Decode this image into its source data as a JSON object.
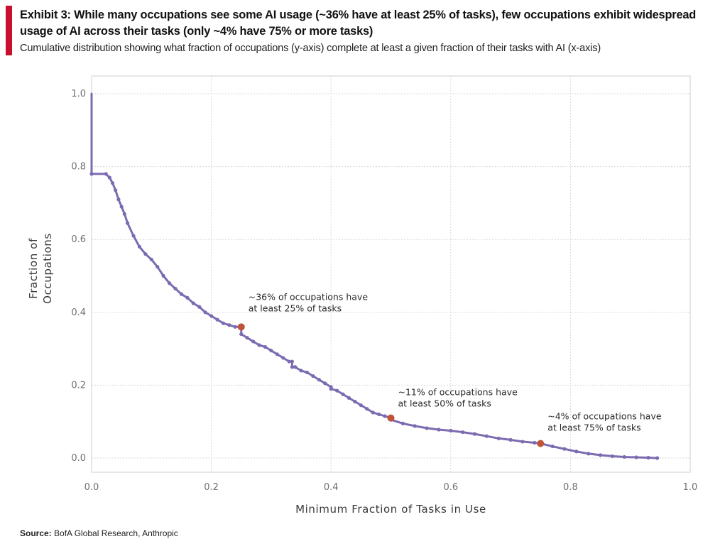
{
  "header": {
    "accent_color": "#c8102e",
    "title": "Exhibit 3: While many occupations see some AI usage (~36% have at least 25% of tasks), few occupations exhibit widespread usage of AI across their tasks (only ~4% have 75% or more tasks)",
    "subtitle": "Cumulative distribution showing what fraction of occupations (y-axis) complete at least a given fraction of their tasks with AI (x-axis)"
  },
  "footer": {
    "source_label": "Source:",
    "source_text": " BofA Global Research, Anthropic"
  },
  "chart_data": {
    "type": "line",
    "title": "",
    "xlabel": "Minimum Fraction of Tasks in Use",
    "ylabel_lines": [
      "Fraction of",
      "Occupations"
    ],
    "xlim": [
      0,
      1
    ],
    "ylim": [
      0,
      1
    ],
    "x_ticks": [
      "0.0",
      "0.2",
      "0.4",
      "0.6",
      "0.8",
      "1.0"
    ],
    "y_ticks": [
      "0.0",
      "0.2",
      "0.4",
      "0.6",
      "0.8",
      "1.0"
    ],
    "grid": true,
    "line_color": "#7b6bb0",
    "highlight_color": "#c0533a",
    "series": [
      {
        "x": [
          0.0,
          0.0,
          0.024,
          0.03,
          0.035,
          0.04,
          0.045,
          0.05,
          0.055,
          0.06,
          0.07,
          0.08,
          0.09,
          0.1,
          0.11,
          0.12,
          0.13,
          0.14,
          0.15,
          0.16,
          0.17,
          0.18,
          0.19,
          0.2,
          0.21,
          0.22,
          0.23,
          0.24,
          0.25,
          0.25,
          0.26,
          0.27,
          0.28,
          0.29,
          0.3,
          0.31,
          0.32,
          0.33,
          0.335,
          0.335,
          0.34,
          0.35,
          0.36,
          0.37,
          0.38,
          0.39,
          0.4,
          0.4,
          0.41,
          0.42,
          0.43,
          0.44,
          0.45,
          0.46,
          0.47,
          0.48,
          0.49,
          0.5,
          0.5,
          0.52,
          0.54,
          0.56,
          0.58,
          0.6,
          0.62,
          0.64,
          0.66,
          0.68,
          0.7,
          0.72,
          0.74,
          0.75,
          0.77,
          0.79,
          0.81,
          0.83,
          0.85,
          0.87,
          0.89,
          0.91,
          0.93,
          0.945
        ],
        "y": [
          1.0,
          0.78,
          0.78,
          0.77,
          0.755,
          0.735,
          0.71,
          0.69,
          0.67,
          0.645,
          0.61,
          0.58,
          0.56,
          0.545,
          0.525,
          0.5,
          0.48,
          0.465,
          0.45,
          0.44,
          0.425,
          0.415,
          0.4,
          0.39,
          0.38,
          0.37,
          0.365,
          0.36,
          0.36,
          0.34,
          0.33,
          0.32,
          0.31,
          0.305,
          0.295,
          0.285,
          0.275,
          0.265,
          0.265,
          0.25,
          0.25,
          0.24,
          0.235,
          0.225,
          0.215,
          0.205,
          0.195,
          0.19,
          0.185,
          0.175,
          0.165,
          0.155,
          0.145,
          0.135,
          0.125,
          0.12,
          0.115,
          0.11,
          0.105,
          0.095,
          0.088,
          0.082,
          0.078,
          0.075,
          0.071,
          0.066,
          0.06,
          0.054,
          0.05,
          0.045,
          0.042,
          0.04,
          0.032,
          0.025,
          0.018,
          0.012,
          0.008,
          0.005,
          0.003,
          0.002,
          0.001,
          0.0
        ]
      }
    ],
    "highlights": [
      {
        "x": 0.25,
        "y": 0.36,
        "label_lines": [
          "~36% of occupations have",
          "at least 25% of tasks"
        ]
      },
      {
        "x": 0.5,
        "y": 0.11,
        "label_lines": [
          "~11% of occupations have",
          "at least 50% of tasks"
        ]
      },
      {
        "x": 0.75,
        "y": 0.04,
        "label_lines": [
          "~4% of occupations have",
          "at least 75% of tasks"
        ]
      }
    ]
  }
}
